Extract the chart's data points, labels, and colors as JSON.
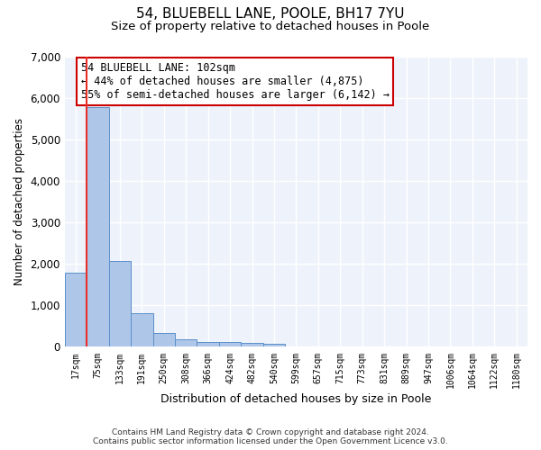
{
  "title1": "54, BLUEBELL LANE, POOLE, BH17 7YU",
  "title2": "Size of property relative to detached houses in Poole",
  "xlabel": "Distribution of detached houses by size in Poole",
  "ylabel": "Number of detached properties",
  "categories": [
    "17sqm",
    "75sqm",
    "133sqm",
    "191sqm",
    "250sqm",
    "308sqm",
    "366sqm",
    "424sqm",
    "482sqm",
    "540sqm",
    "599sqm",
    "657sqm",
    "715sqm",
    "773sqm",
    "831sqm",
    "889sqm",
    "947sqm",
    "1006sqm",
    "1064sqm",
    "1122sqm",
    "1180sqm"
  ],
  "values": [
    1780,
    5780,
    2060,
    820,
    340,
    185,
    120,
    110,
    95,
    70,
    0,
    0,
    0,
    0,
    0,
    0,
    0,
    0,
    0,
    0,
    0
  ],
  "bar_color": "#aec6e8",
  "bar_edge_color": "#5b8fc9",
  "red_line_color": "#e8302a",
  "annotation_text": "54 BLUEBELL LANE: 102sqm\n← 44% of detached houses are smaller (4,875)\n55% of semi-detached houses are larger (6,142) →",
  "annotation_box_color": "#ffffff",
  "annotation_box_edge": "#cc0000",
  "ylim": [
    0,
    7000
  ],
  "yticks": [
    0,
    1000,
    2000,
    3000,
    4000,
    5000,
    6000,
    7000
  ],
  "footer1": "Contains HM Land Registry data © Crown copyright and database right 2024.",
  "footer2": "Contains public sector information licensed under the Open Government Licence v3.0.",
  "bg_color": "#eef3fb",
  "grid_color": "#ffffff",
  "title1_fontsize": 11,
  "title2_fontsize": 9.5
}
